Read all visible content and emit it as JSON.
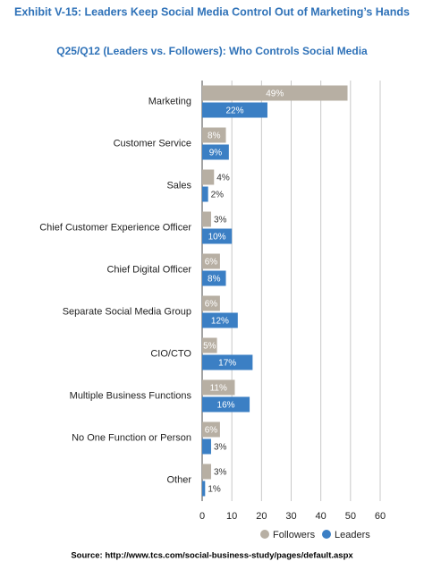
{
  "chart_data": {
    "type": "bar",
    "orientation": "horizontal",
    "title": "Exhibit V-15: Leaders Keep Social Media Control Out of Marketing’s Hands",
    "subtitle": "Q25/Q12 (Leaders vs. Followers): Who Controls Social Media",
    "source": "Source: http://www.tcs.com/social-business-study/pages/default.aspx",
    "categories": [
      "Marketing",
      "Customer Service",
      "Sales",
      "Chief Customer Experience Officer",
      "Chief Digital Officer",
      "Separate Social Media Group",
      "CIO/CTO",
      "Multiple Business Functions",
      "No One Function or Person",
      "Other"
    ],
    "series": [
      {
        "name": "Followers",
        "color": "#b7afa3",
        "values": [
          49,
          8,
          4,
          3,
          6,
          6,
          5,
          11,
          6,
          3
        ],
        "value_labels": [
          "49%",
          "8%",
          "4%",
          "3%",
          "6%",
          "6%",
          "5%",
          "11%",
          "6%",
          "3%"
        ]
      },
      {
        "name": "Leaders",
        "color": "#3b7fc4",
        "values": [
          22,
          9,
          2,
          10,
          8,
          12,
          17,
          16,
          3,
          1
        ],
        "value_labels": [
          "22%",
          "9%",
          "2%",
          "10%",
          "8%",
          "12%",
          "17%",
          "16%",
          "3%",
          "1%"
        ]
      }
    ],
    "xlim": [
      0,
      60
    ],
    "xticks": [
      0,
      10,
      20,
      30,
      40,
      50,
      60
    ],
    "grid": true
  }
}
